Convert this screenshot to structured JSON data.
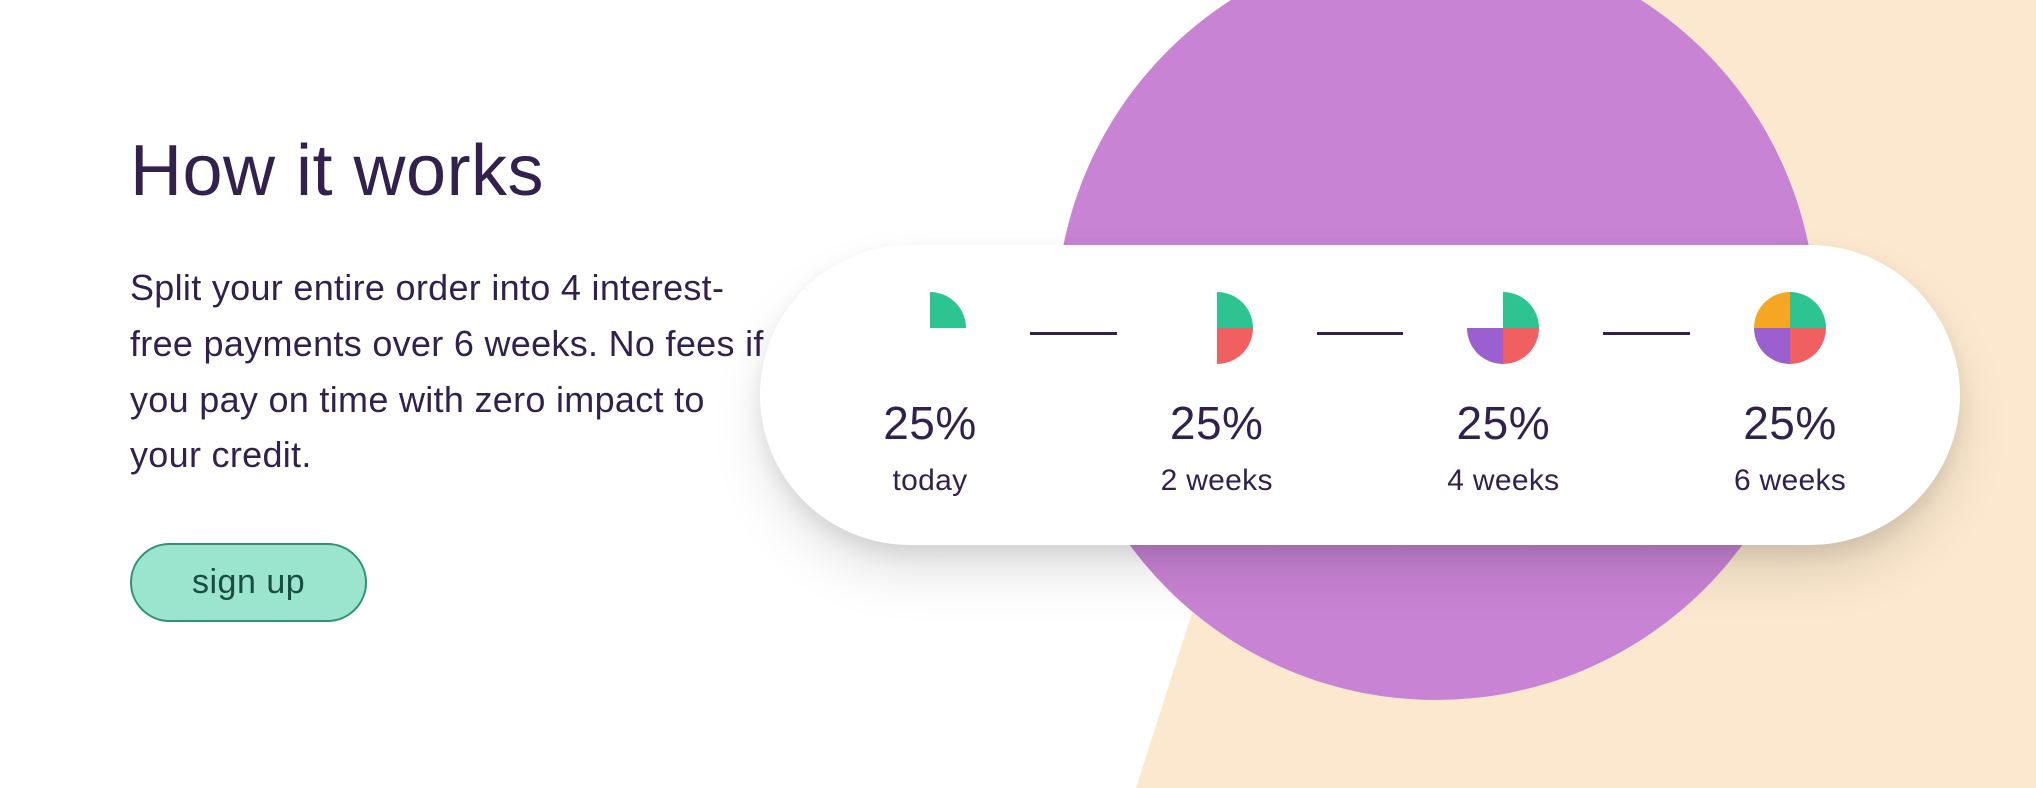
{
  "colors": {
    "text_dark": "#32214c",
    "purple_circle": "#c983d4",
    "cream": "#fbe8ce",
    "btn_fill": "#9be4cd",
    "btn_border": "#2f9178",
    "btn_text": "#184d3f",
    "quad_green": "#2ec492",
    "quad_red": "#f06060",
    "quad_purple": "#9b5fcf",
    "quad_orange": "#f5a623"
  },
  "heading": "How it works",
  "body": "Split your entire order into 4 interest-free payments over 6 weeks. No fees if you pay on time with zero impact to your credit.",
  "cta": "sign up",
  "timeline": {
    "steps": [
      {
        "pct": "25%",
        "when": "today",
        "quads": {
          "tl": null,
          "tr": "quad_green",
          "bl": null,
          "br": null
        }
      },
      {
        "pct": "25%",
        "when": "2 weeks",
        "quads": {
          "tl": null,
          "tr": "quad_green",
          "bl": null,
          "br": "quad_red"
        }
      },
      {
        "pct": "25%",
        "when": "4 weeks",
        "quads": {
          "tl": null,
          "tr": "quad_green",
          "bl": "quad_purple",
          "br": "quad_red"
        }
      },
      {
        "pct": "25%",
        "when": "6 weeks",
        "quads": {
          "tl": "quad_orange",
          "tr": "quad_green",
          "bl": "quad_purple",
          "br": "quad_red"
        }
      }
    ],
    "pct_fontsize": 46,
    "when_fontsize": 30,
    "card_radius": 150,
    "pie_size": 72
  }
}
